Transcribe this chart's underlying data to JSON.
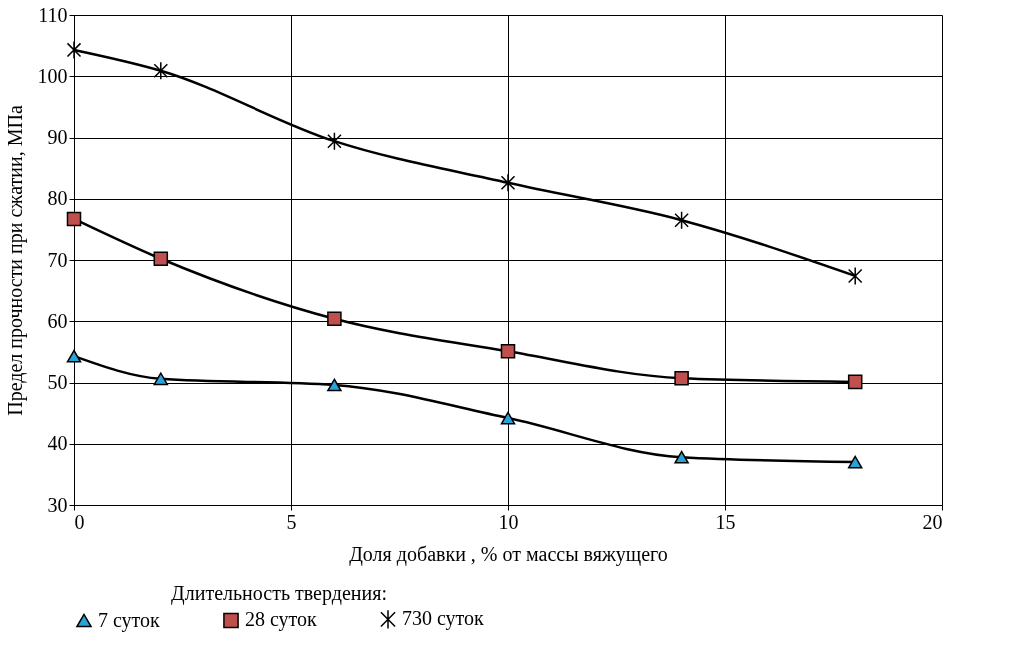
{
  "chart_data": {
    "type": "line",
    "xlabel": "Доля добавки , % от массы вяжущего",
    "ylabel": "Предел прочности при сжатии, МПа",
    "legend_title": "Длительность твердения:",
    "x": [
      0,
      2,
      6,
      10,
      14,
      18
    ],
    "series": [
      {
        "name": "7 суток",
        "color": "#29a3d8",
        "marker": "triangle",
        "values": [
          54.3,
          50.6,
          49.6,
          44.2,
          37.8,
          37.0
        ]
      },
      {
        "name": "28 суток",
        "color": "#c0504d",
        "marker": "square",
        "values": [
          76.7,
          70.2,
          60.4,
          55.1,
          50.7,
          50.1
        ]
      },
      {
        "name": "730 суток",
        "color": "#000000",
        "marker": "cross",
        "values": [
          104.3,
          100.9,
          89.4,
          82.6,
          76.5,
          67.4
        ]
      }
    ],
    "xlim": [
      0,
      20
    ],
    "xticks": [
      0,
      5,
      10,
      15,
      20
    ],
    "ylim": [
      30,
      110
    ],
    "yticks": [
      30,
      40,
      50,
      60,
      70,
      80,
      90,
      100,
      110
    ],
    "grid": true,
    "legend": "bottom",
    "line_style": "solid"
  }
}
